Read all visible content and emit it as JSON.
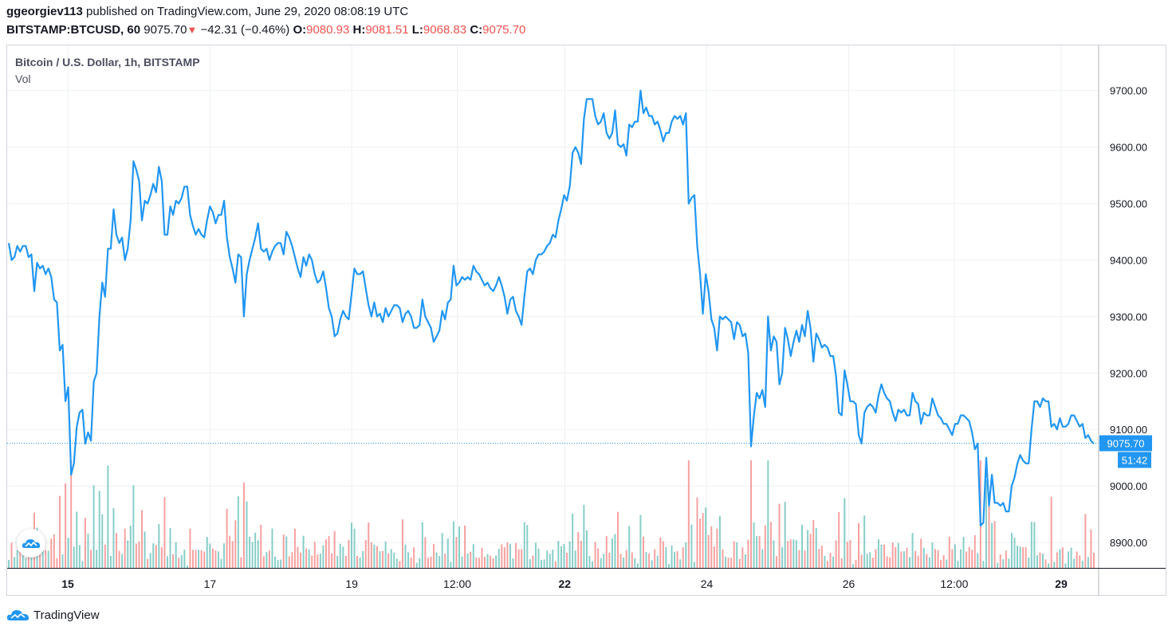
{
  "header": {
    "publisher": "ggeorgiev113",
    "published_text": " published on TradingView.com, June 29, 2020 08:08:19 UTC",
    "symbol": "BITSTAMP:BTCUSD, 60",
    "last": "9075.70",
    "change": "−42.31 (−0.46%)",
    "o_label": "O:",
    "o_value": "9080.93",
    "h_label": "H:",
    "h_value": "9081.51",
    "l_label": "L:",
    "l_value": "9068.83",
    "c_label": "C:",
    "c_value": "9075.70"
  },
  "legend": {
    "title": "Bitcoin / U.S. Dollar, 1h, BITSTAMP",
    "vol": "Vol"
  },
  "footer": {
    "brand": "TradingView"
  },
  "colors": {
    "line": "#2196f3",
    "vol_up": "#26a69a",
    "vol_down": "#ef5350",
    "grid": "#edf0f3",
    "price_tag": "#2196f3"
  },
  "chart_data": {
    "type": "line",
    "ylim": [
      8855,
      9780
    ],
    "y_ticks": [
      "9700.00",
      "9600.00",
      "9500.00",
      "9400.00",
      "9300.00",
      "9200.00",
      "9100.00",
      "9000.00",
      "8900.00"
    ],
    "x_ticks": [
      {
        "label": "15",
        "bold": true,
        "pos": 0.0555
      },
      {
        "label": "17",
        "bold": false,
        "pos": 0.1858
      },
      {
        "label": "19",
        "bold": false,
        "pos": 0.3157
      },
      {
        "label": "12:00",
        "bold": false,
        "pos": 0.4124
      },
      {
        "label": "22",
        "bold": true,
        "pos": 0.5108
      },
      {
        "label": "24",
        "bold": false,
        "pos": 0.641
      },
      {
        "label": "26",
        "bold": false,
        "pos": 0.771
      },
      {
        "label": "12:00",
        "bold": false,
        "pos": 0.8677
      },
      {
        "label": "29",
        "bold": true,
        "pos": 0.9657
      }
    ],
    "last_price": 9075.7,
    "last_price_label": "9075.70",
    "countdown_label": "51:42",
    "series": [
      {
        "values": [
          9430,
          9400,
          9405,
          9425,
          9415,
          9425,
          9425,
          9405,
          9410,
          9345,
          9395,
          9385,
          9390,
          9375,
          9385,
          9370,
          9330,
          9325,
          9240,
          9250,
          9150,
          9175,
          9020,
          9040,
          9105,
          9130,
          9135,
          9075,
          9095,
          9080,
          9185,
          9200,
          9300,
          9360,
          9335,
          9420,
          9420,
          9490,
          9445,
          9430,
          9440,
          9400,
          9420,
          9470,
          9575,
          9560,
          9540,
          9470,
          9505,
          9500,
          9515,
          9535,
          9520,
          9565,
          9540,
          9445,
          9445,
          9495,
          9480,
          9505,
          9500,
          9510,
          9530,
          9530,
          9480,
          9460,
          9445,
          9455,
          9445,
          9440,
          9470,
          9495,
          9485,
          9465,
          9480,
          9480,
          9505,
          9440,
          9405,
          9385,
          9360,
          9410,
          9405,
          9300,
          9375,
          9400,
          9420,
          9440,
          9465,
          9420,
          9415,
          9420,
          9400,
          9415,
          9425,
          9430,
          9430,
          9410,
          9450,
          9440,
          9425,
          9405,
          9385,
          9370,
          9405,
          9390,
          9410,
          9400,
          9375,
          9360,
          9365,
          9380,
          9350,
          9315,
          9300,
          9265,
          9270,
          9295,
          9310,
          9300,
          9295,
          9340,
          9385,
          9375,
          9375,
          9380,
          9350,
          9320,
          9300,
          9325,
          9300,
          9305,
          9290,
          9315,
          9300,
          9310,
          9320,
          9320,
          9315,
          9290,
          9305,
          9310,
          9300,
          9280,
          9280,
          9285,
          9330,
          9300,
          9290,
          9280,
          9255,
          9265,
          9275,
          9310,
          9295,
          9325,
          9330,
          9390,
          9355,
          9360,
          9370,
          9365,
          9370,
          9365,
          9390,
          9380,
          9375,
          9365,
          9355,
          9360,
          9350,
          9345,
          9355,
          9370,
          9355,
          9335,
          9305,
          9330,
          9335,
          9310,
          9300,
          9285,
          9335,
          9380,
          9385,
          9375,
          9400,
          9410,
          9410,
          9415,
          9425,
          9430,
          9445,
          9440,
          9470,
          9490,
          9515,
          9505,
          9530,
          9590,
          9600,
          9590,
          9570,
          9650,
          9685,
          9685,
          9685,
          9655,
          9640,
          9645,
          9660,
          9625,
          9615,
          9625,
          9665,
          9605,
          9600,
          9605,
          9585,
          9640,
          9635,
          9645,
          9645,
          9700,
          9660,
          9670,
          9655,
          9655,
          9640,
          9645,
          9630,
          9610,
          9625,
          9625,
          9645,
          9655,
          9650,
          9655,
          9640,
          9660,
          9500,
          9510,
          9515,
          9425,
          9375,
          9305,
          9375,
          9345,
          9295,
          9280,
          9240,
          9300,
          9295,
          9300,
          9295,
          9290,
          9260,
          9290,
          9285,
          9265,
          9270,
          9235,
          9070,
          9125,
          9165,
          9155,
          9170,
          9140,
          9300,
          9240,
          9265,
          9255,
          9180,
          9200,
          9280,
          9260,
          9230,
          9255,
          9275,
          9255,
          9285,
          9265,
          9310,
          9280,
          9220,
          9270,
          9260,
          9245,
          9250,
          9245,
          9230,
          9230,
          9195,
          9130,
          9125,
          9205,
          9180,
          9150,
          9150,
          9145,
          9090,
          9075,
          9130,
          9140,
          9145,
          9140,
          9130,
          9160,
          9180,
          9165,
          9155,
          9150,
          9130,
          9115,
          9135,
          9130,
          9135,
          9125,
          9125,
          9165,
          9150,
          9145,
          9110,
          9130,
          9125,
          9125,
          9155,
          9140,
          9125,
          9120,
          9110,
          9110,
          9100,
          9090,
          9110,
          9110,
          9125,
          9125,
          9120,
          9115,
          9095,
          9065,
          9075,
          8930,
          8935,
          9050,
          8965,
          9020,
          8970,
          8970,
          8965,
          8970,
          8955,
          8955,
          9000,
          9015,
          9040,
          9055,
          9045,
          9040,
          9040,
          9100,
          9150,
          9150,
          9140,
          9155,
          9150,
          9150,
          9105,
          9110,
          9100,
          9120,
          9105,
          9105,
          9110,
          9125,
          9125,
          9115,
          9105,
          9110,
          9085,
          9090,
          9080,
          9075
        ]
      }
    ]
  }
}
